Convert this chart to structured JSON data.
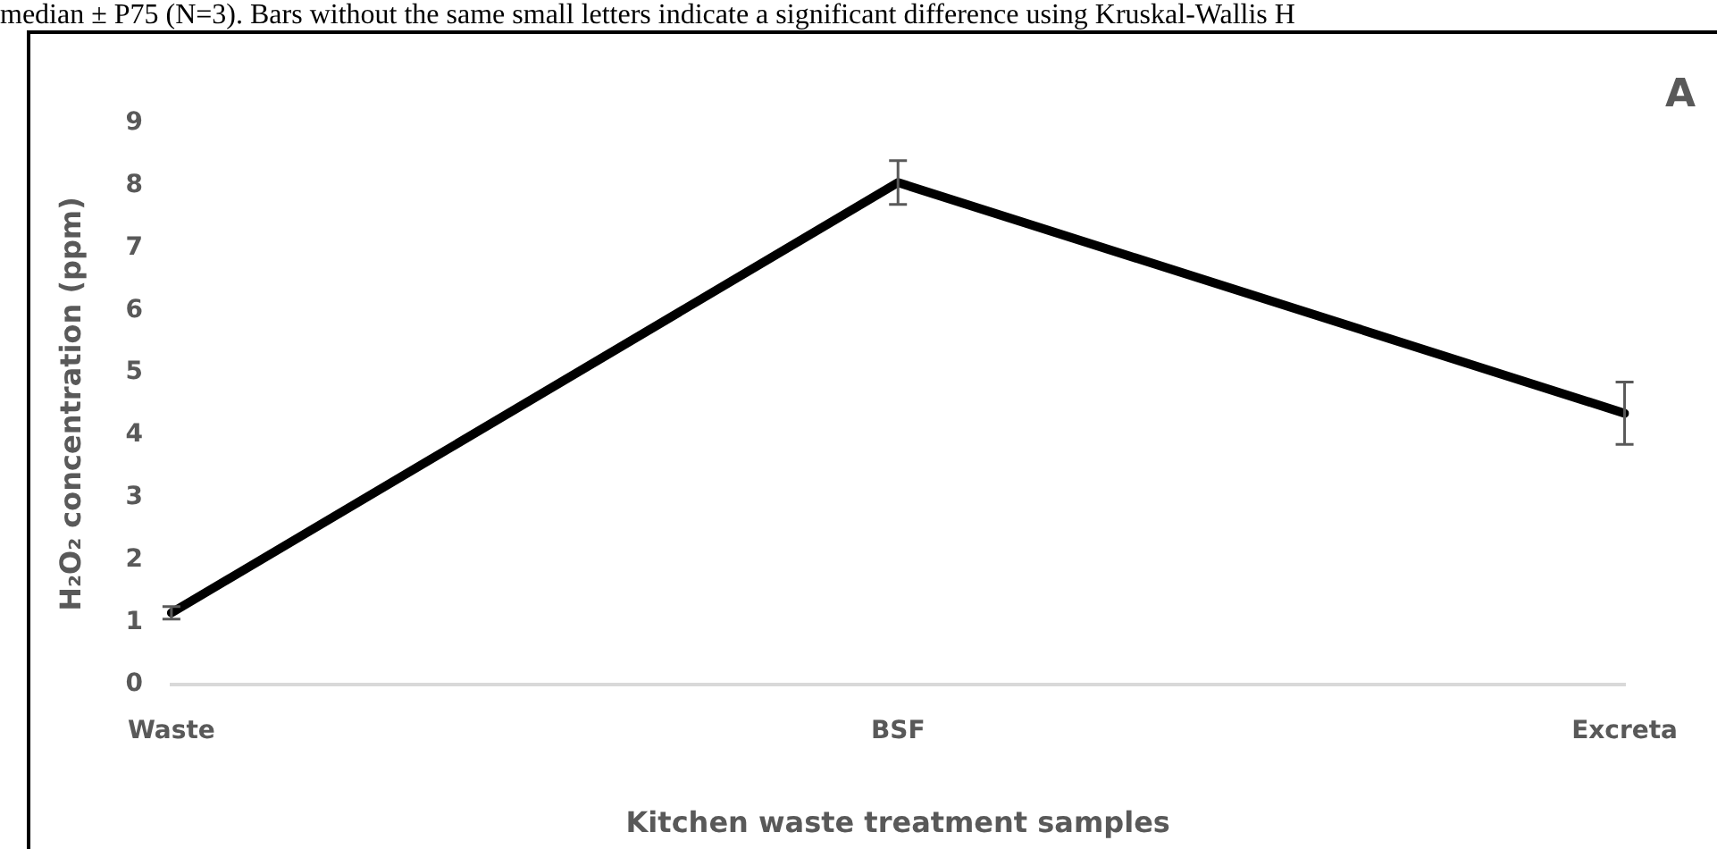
{
  "chart_data": {
    "type": "line",
    "xlabel": "Kitchen waste treatment samples",
    "ylabel": "H₂O₂ concentration (ppm)",
    "categories": [
      "Waste",
      "BSF",
      "Excreta"
    ],
    "series": [
      {
        "color": "#000000",
        "values": [
          1.15,
          8.05,
          4.35
        ],
        "errors": [
          0.1,
          0.35,
          0.5
        ]
      }
    ],
    "ylim": [
      0,
      9
    ],
    "yticks": [
      0,
      1,
      2,
      3,
      4,
      5,
      6,
      7,
      8,
      9
    ],
    "grid": false,
    "legend": false,
    "marker": "none",
    "line_style": "solid",
    "annotations": [
      "median ± P75 (N=3). Bars without the same small letters indicate a significant difference using Kruskal-Wallis H",
      "A"
    ]
  }
}
